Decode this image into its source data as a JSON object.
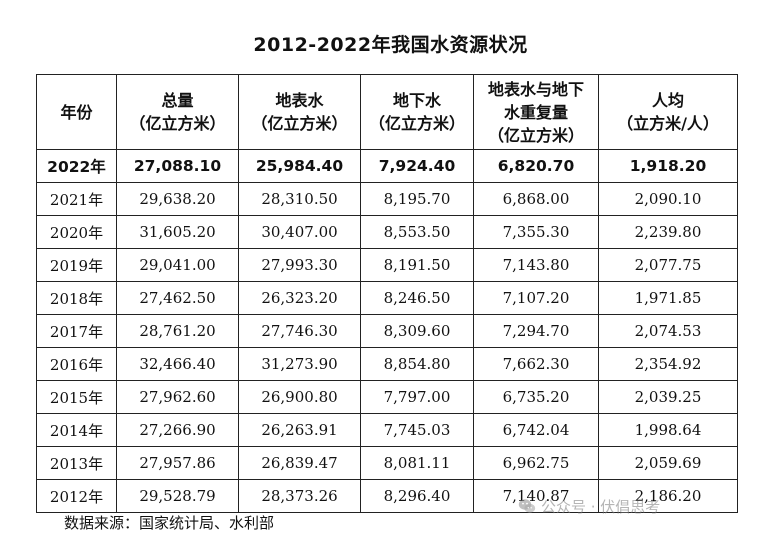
{
  "title": "2012-2022年我国水资源状况",
  "chart_data": {
    "type": "table",
    "title": "2012-2022年我国水资源状况",
    "columns": [
      {
        "key": "year",
        "lines": [
          "年份"
        ]
      },
      {
        "key": "total",
        "lines": [
          "总量",
          "（亿立方米）"
        ]
      },
      {
        "key": "surface",
        "lines": [
          "地表水",
          "（亿立方米）"
        ]
      },
      {
        "key": "ground",
        "lines": [
          "地下水",
          "（亿立方米）"
        ]
      },
      {
        "key": "overlap",
        "lines": [
          "地表水与地下",
          "水重复量",
          "（亿立方米）"
        ]
      },
      {
        "key": "per_capita",
        "lines": [
          "人均",
          "（立方米/人）"
        ]
      }
    ],
    "rows": [
      {
        "highlight": true,
        "cells": [
          "2022年",
          "27,088.10",
          "25,984.40",
          "7,924.40",
          "6,820.70",
          "1,918.20"
        ]
      },
      {
        "highlight": false,
        "cells": [
          "2021年",
          "29,638.20",
          "28,310.50",
          "8,195.70",
          "6,868.00",
          "2,090.10"
        ]
      },
      {
        "highlight": false,
        "cells": [
          "2020年",
          "31,605.20",
          "30,407.00",
          "8,553.50",
          "7,355.30",
          "2,239.80"
        ]
      },
      {
        "highlight": false,
        "cells": [
          "2019年",
          "29,041.00",
          "27,993.30",
          "8,191.50",
          "7,143.80",
          "2,077.75"
        ]
      },
      {
        "highlight": false,
        "cells": [
          "2018年",
          "27,462.50",
          "26,323.20",
          "8,246.50",
          "7,107.20",
          "1,971.85"
        ]
      },
      {
        "highlight": false,
        "cells": [
          "2017年",
          "28,761.20",
          "27,746.30",
          "8,309.60",
          "7,294.70",
          "2,074.53"
        ]
      },
      {
        "highlight": false,
        "cells": [
          "2016年",
          "32,466.40",
          "31,273.90",
          "8,854.80",
          "7,662.30",
          "2,354.92"
        ]
      },
      {
        "highlight": false,
        "cells": [
          "2015年",
          "27,962.60",
          "26,900.80",
          "7,797.00",
          "6,735.20",
          "2,039.25"
        ]
      },
      {
        "highlight": false,
        "cells": [
          "2014年",
          "27,266.90",
          "26,263.91",
          "7,745.03",
          "6,742.04",
          "1,998.64"
        ]
      },
      {
        "highlight": false,
        "cells": [
          "2013年",
          "27,957.86",
          "26,839.47",
          "8,081.11",
          "6,962.75",
          "2,059.69"
        ]
      },
      {
        "highlight": false,
        "cells": [
          "2012年",
          "29,528.79",
          "28,373.26",
          "8,296.40",
          "7,140.87",
          "2,186.20"
        ]
      }
    ]
  },
  "source": "数据来源：国家统计局、水利部",
  "watermark": {
    "text": "公众号 · 伏倡思考",
    "icon": "wechat-icon"
  }
}
